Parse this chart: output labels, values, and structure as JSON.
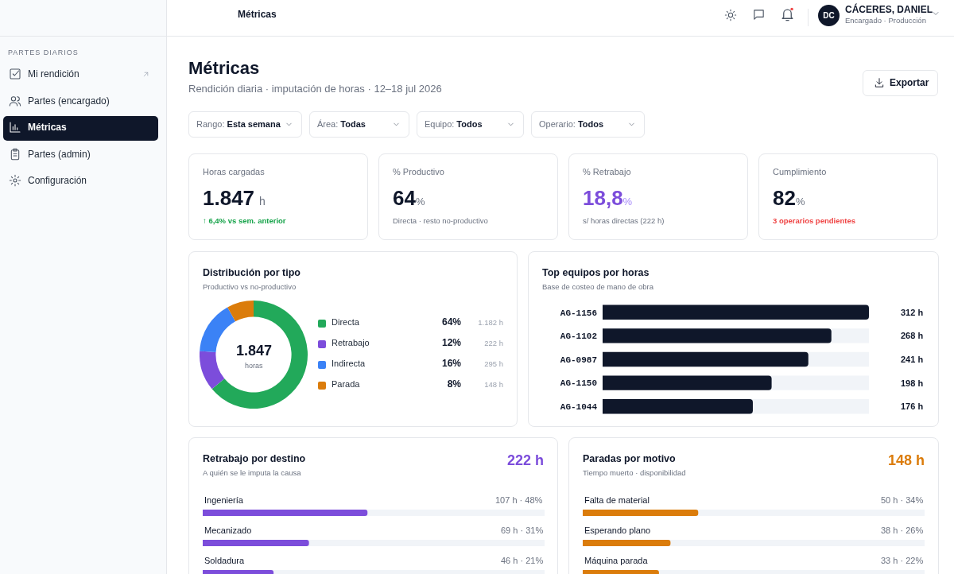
{
  "chart_data": [
    {
      "type": "other",
      "title": "Métricas",
      "subtitle": "Rendición diaria · imputación de horas · 12–18 jul 2026",
      "annotations": [
        "PARTES DIARIOS",
        "Mi rendición",
        "Partes (encargado)",
        "Métricas",
        "Partes (admin)",
        "Configuración",
        "Métricas",
        "DC",
        "CÁCERES, DANIEL",
        "Encargado · Producción",
        "Exportar",
        "Rango: Esta semana",
        "Área: Todas",
        "Equipo: Todos",
        "Operario: Todos"
      ]
    },
    {
      "type": "other",
      "annotations": [
        "Horas cargadas",
        "1.847",
        "h",
        "↑ 6,4% vs sem. anterior",
        "% Productivo",
        "64",
        "%",
        "Directa · resto no-productivo",
        "% Retrabajo",
        "18,8",
        "%",
        "s/ horas directas (222 h)",
        "Cumplimiento",
        "82",
        "%",
        "3 operarios pendientes"
      ]
    },
    {
      "type": "donut",
      "title": "Distribución por tipo",
      "subtitle": "Productivo vs no-productivo",
      "categories": [
        "Directa",
        "Retrabajo",
        "Indirecta",
        "Parada"
      ],
      "values": [
        1182,
        222,
        295,
        148
      ],
      "colors": [
        "#22a95a",
        "#7c4ddb",
        "#3b82f6",
        "#db7c0b"
      ],
      "value_labels": [
        "1.182 h",
        "222 h",
        "295 h",
        "148 h"
      ],
      "legend": "right",
      "annotations": [
        "1.847",
        "horas",
        "64%",
        "12%",
        "16%",
        "8%"
      ]
    },
    {
      "type": "bar",
      "orientation": "horizontal",
      "title": "Top equipos por horas",
      "subtitle": "Base de costeo de mano de obra",
      "categories": [
        "AG-1156",
        "AG-1102",
        "AG-0987",
        "AG-1150",
        "AG-1044"
      ],
      "values": [
        312,
        268,
        241,
        198,
        176
      ],
      "color": "#0f172a",
      "xlim": [
        0,
        312
      ],
      "tick_labels": "y",
      "value_labels": [
        "312 h",
        "268 h",
        "241 h",
        "198 h",
        "176 h"
      ]
    },
    {
      "type": "bar",
      "orientation": "horizontal",
      "title": "Retrabajo por destino",
      "subtitle": "A quién se le imputa la causa",
      "categories": [
        "Ingeniería",
        "Mecanizado",
        "Soldadura"
      ],
      "values": [
        107,
        69,
        46
      ],
      "color": "#7c4ddb",
      "xlim": [
        0,
        222
      ],
      "tick_labels": false,
      "value_labels": [
        "107 h · 48%",
        "69 h · 31%",
        "46 h · 21%"
      ],
      "annotations": [
        "222 h"
      ]
    },
    {
      "type": "bar",
      "orientation": "horizontal",
      "title": "Paradas por motivo",
      "subtitle": "Tiempo muerto · disponibilidad",
      "categories": [
        "Falta de material",
        "Esperando plano",
        "Máquina parada"
      ],
      "values": [
        50,
        38,
        33
      ],
      "color": "#db7c0b",
      "xlim": [
        0,
        148
      ],
      "tick_labels": false,
      "value_labels": [
        "50 h · 34%",
        "38 h · 26%",
        "33 h · 22%"
      ],
      "annotations": [
        "148 h"
      ]
    }
  ]
}
